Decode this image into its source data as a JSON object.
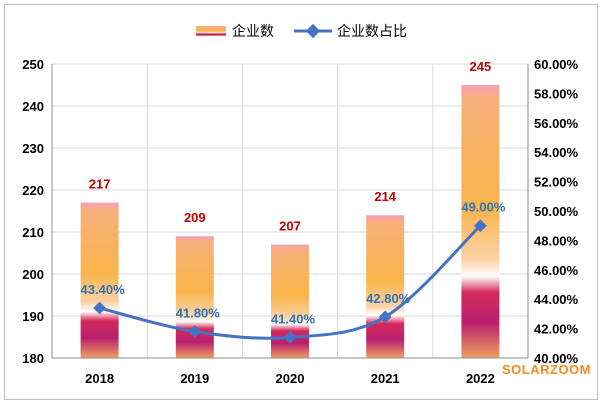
{
  "chart_data": {
    "type": "bar",
    "categories": [
      "2018",
      "2019",
      "2020",
      "2021",
      "2022"
    ],
    "series": [
      {
        "name": "企业数",
        "type": "bar",
        "axis": "left",
        "values": [
          217,
          209,
          207,
          214,
          245
        ],
        "labels": [
          "217",
          "209",
          "207",
          "214",
          "245"
        ]
      },
      {
        "name": "企业数占比",
        "type": "line",
        "axis": "right",
        "values": [
          43.4,
          41.8,
          41.4,
          42.8,
          49.0
        ],
        "labels": [
          "43.40%",
          "41.80%",
          "41.40%",
          "42.80%",
          "49.00%"
        ]
      }
    ],
    "y_left": {
      "min": 180,
      "max": 250,
      "ticks": [
        "180",
        "190",
        "200",
        "210",
        "220",
        "230",
        "240",
        "250"
      ]
    },
    "y_right": {
      "min": 40,
      "max": 60,
      "ticks": [
        "40.00%",
        "42.00%",
        "44.00%",
        "46.00%",
        "48.00%",
        "50.00%",
        "52.00%",
        "54.00%",
        "56.00%",
        "58.00%",
        "60.00%"
      ]
    },
    "grid": true,
    "legend_position": "top"
  },
  "colors": {
    "line": "#4472c4",
    "bar_label": "#c00000",
    "pct_label": "#2e75b6",
    "watermark": "#f08a24"
  },
  "watermark": "SOLARZOOM"
}
